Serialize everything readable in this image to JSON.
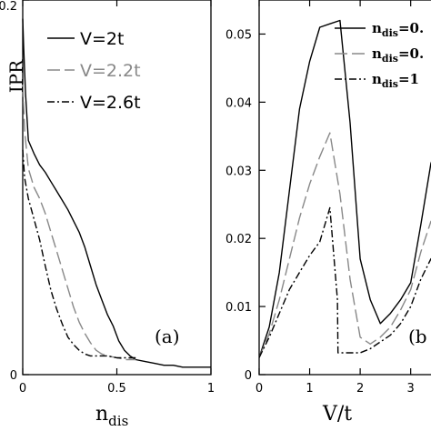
{
  "chart_data": [
    {
      "type": "line",
      "panel_label": "(a)",
      "xlabel": "n",
      "xlabel_sub": "dis",
      "ylabel": "IPR",
      "xlim": [
        0,
        1
      ],
      "ylim": [
        0,
        0.2
      ],
      "xticks": [
        {
          "v": 0,
          "t": "0"
        },
        {
          "v": 0.5,
          "t": "0.5"
        },
        {
          "v": 1,
          "t": "1"
        }
      ],
      "yticks": [
        {
          "v": 0,
          "t": "0"
        },
        {
          "v": 0.2,
          "t": "0.2"
        }
      ],
      "series": [
        {
          "name": "V=2t",
          "color": "#000000",
          "dash": "",
          "x": [
            0,
            0.005,
            0.015,
            0.03,
            0.06,
            0.09,
            0.12,
            0.15,
            0.18,
            0.21,
            0.24,
            0.27,
            0.3,
            0.33,
            0.36,
            0.39,
            0.42,
            0.45,
            0.48,
            0.51,
            0.54,
            0.57,
            0.6,
            0.65,
            0.7,
            0.75,
            0.8,
            0.85,
            0.9,
            0.95,
            1.0
          ],
          "y": [
            0.19,
            0.175,
            0.15,
            0.125,
            0.118,
            0.112,
            0.108,
            0.103,
            0.098,
            0.093,
            0.088,
            0.082,
            0.076,
            0.068,
            0.058,
            0.048,
            0.04,
            0.032,
            0.026,
            0.018,
            0.013,
            0.01,
            0.008,
            0.007,
            0.006,
            0.005,
            0.005,
            0.004,
            0.004,
            0.004,
            0.004
          ]
        },
        {
          "name": "V=2.2t",
          "color": "#888888",
          "dash": "14 5",
          "x": [
            0,
            0.01,
            0.03,
            0.06,
            0.09,
            0.12,
            0.15,
            0.18,
            0.21,
            0.24,
            0.27,
            0.3,
            0.33,
            0.36,
            0.39,
            0.42,
            0.45,
            0.5,
            0.55,
            0.6
          ],
          "y": [
            0.155,
            0.13,
            0.11,
            0.1,
            0.094,
            0.086,
            0.076,
            0.066,
            0.056,
            0.046,
            0.036,
            0.028,
            0.022,
            0.017,
            0.013,
            0.011,
            0.01,
            0.009,
            0.008,
            0.008
          ]
        },
        {
          "name": "V=2.6t",
          "color": "#000000",
          "dash": "8 3 2 3",
          "x": [
            0,
            0.01,
            0.03,
            0.06,
            0.09,
            0.12,
            0.15,
            0.18,
            0.21,
            0.24,
            0.27,
            0.3,
            0.33,
            0.36,
            0.4,
            0.45,
            0.5,
            0.55,
            0.6
          ],
          "y": [
            0.12,
            0.105,
            0.094,
            0.083,
            0.072,
            0.058,
            0.045,
            0.035,
            0.027,
            0.02,
            0.016,
            0.013,
            0.011,
            0.01,
            0.01,
            0.01,
            0.009,
            0.009,
            0.009
          ]
        }
      ]
    },
    {
      "type": "line",
      "panel_label": "(b",
      "xlabel": "V/t",
      "xlim": [
        0,
        3.6
      ],
      "ylim": [
        0,
        0.055
      ],
      "xticks": [
        {
          "v": 0,
          "t": "0"
        },
        {
          "v": 1,
          "t": "1"
        },
        {
          "v": 2,
          "t": "2"
        },
        {
          "v": 3,
          "t": "3"
        }
      ],
      "yticks": [
        {
          "v": 0,
          "t": "0"
        },
        {
          "v": 0.01,
          "t": "0.01"
        },
        {
          "v": 0.02,
          "t": "0.02"
        },
        {
          "v": 0.03,
          "t": "0.03"
        },
        {
          "v": 0.04,
          "t": "0.04"
        },
        {
          "v": 0.05,
          "t": "0.05"
        }
      ],
      "series": [
        {
          "name": "n",
          "name_sub": "dis",
          "name_suffix": "=0.",
          "color": "#000000",
          "dash": "",
          "x": [
            0,
            0.2,
            0.4,
            0.6,
            0.8,
            1.0,
            1.2,
            1.4,
            1.6,
            1.8,
            2.0,
            2.2,
            2.4,
            2.6,
            2.8,
            3.0,
            3.2,
            3.4,
            3.6
          ],
          "y": [
            0.0025,
            0.007,
            0.015,
            0.027,
            0.039,
            0.046,
            0.051,
            0.0515,
            0.052,
            0.037,
            0.017,
            0.011,
            0.0075,
            0.009,
            0.011,
            0.0135,
            0.022,
            0.031,
            0.035
          ]
        },
        {
          "name": "n",
          "name_sub": "dis",
          "name_suffix": "=0.",
          "color": "#888888",
          "dash": "14 5",
          "x": [
            0,
            0.2,
            0.4,
            0.6,
            0.8,
            1.0,
            1.2,
            1.4,
            1.6,
            1.8,
            2.0,
            2.2,
            2.4,
            2.6,
            2.8,
            3.0,
            3.2,
            3.4,
            3.6
          ],
          "y": [
            0.0025,
            0.006,
            0.011,
            0.017,
            0.023,
            0.028,
            0.032,
            0.0355,
            0.0265,
            0.014,
            0.0055,
            0.0045,
            0.0055,
            0.007,
            0.0095,
            0.0125,
            0.018,
            0.0225,
            0.024
          ]
        },
        {
          "name": "n",
          "name_sub": "dis",
          "name_suffix": "=1",
          "color": "#000000",
          "dash": "8 3 2 3",
          "x": [
            0,
            0.2,
            0.4,
            0.6,
            0.8,
            1.0,
            1.2,
            1.4,
            1.55,
            1.56,
            1.8,
            2.0,
            2.2,
            2.4,
            2.6,
            2.8,
            3.0,
            3.2,
            3.4,
            3.6
          ],
          "y": [
            0.0025,
            0.0055,
            0.009,
            0.0125,
            0.015,
            0.0175,
            0.0195,
            0.0245,
            0.011,
            0.0032,
            0.0032,
            0.0032,
            0.0038,
            0.0048,
            0.0058,
            0.0075,
            0.01,
            0.014,
            0.017,
            0.018
          ]
        }
      ]
    }
  ]
}
